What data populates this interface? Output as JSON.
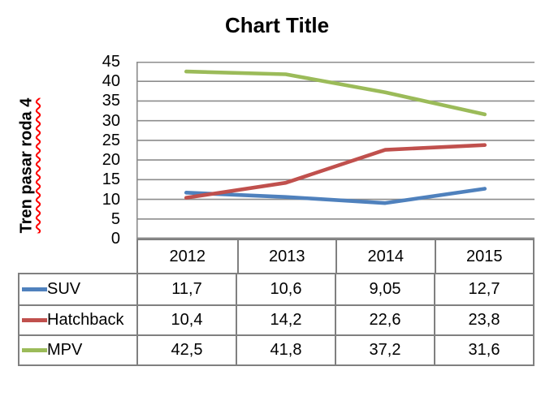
{
  "chart_data": {
    "type": "line",
    "title": "Chart Title",
    "xlabel": "",
    "ylabel": "Tren pasar roda 4",
    "ylabel_has_spellcheck_squiggle": true,
    "categories": [
      "2012",
      "2013",
      "2014",
      "2015"
    ],
    "series": [
      {
        "name": "SUV",
        "color": "#4F81BD",
        "values": [
          11.7,
          10.6,
          9.05,
          12.7
        ],
        "labels": [
          "11,7",
          "10,6",
          "9,05",
          "12,7"
        ]
      },
      {
        "name": "Hatchback",
        "color": "#C0504D",
        "values": [
          10.4,
          14.2,
          22.6,
          23.8
        ],
        "labels": [
          "10,4",
          "14,2",
          "22,6",
          "23,8"
        ]
      },
      {
        "name": "MPV",
        "color": "#9BBB59",
        "values": [
          42.5,
          41.8,
          37.2,
          31.6
        ],
        "labels": [
          "42,5",
          "41,8",
          "37,2",
          "31,6"
        ]
      }
    ],
    "ylim": [
      0,
      45
    ],
    "yticks": [
      0,
      5,
      10,
      15,
      20,
      25,
      30,
      35,
      40,
      45
    ],
    "grid": true,
    "legend_position": "data-table-left-column",
    "data_table_shown": true
  },
  "colors": {
    "gridline": "#8C8C8C",
    "axis_line": "#8C8C8C",
    "table_border": "#808080",
    "text": "#000000",
    "spellcheck_underline": "#FF0000",
    "background": "#FFFFFF"
  }
}
